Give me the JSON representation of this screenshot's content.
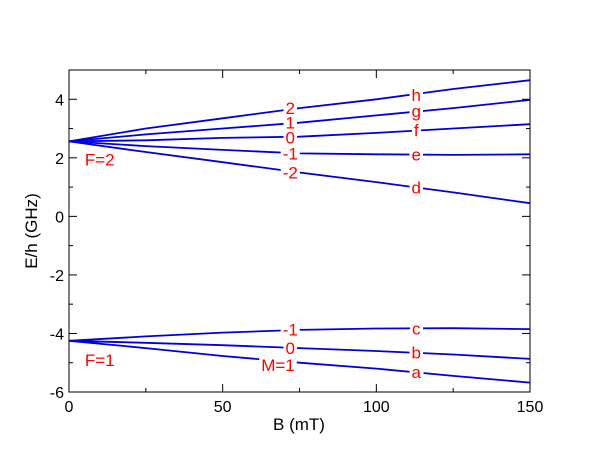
{
  "chart_data": {
    "type": "line",
    "title": "",
    "xlabel": "B (mT)",
    "ylabel": "E/h (GHz)",
    "xlim": [
      0,
      150
    ],
    "ylim": [
      -6,
      5
    ],
    "xticks": [
      0,
      50,
      100,
      150
    ],
    "yticks": [
      -6,
      -4,
      -2,
      0,
      2,
      4
    ],
    "grid": false,
    "line_color": "#0000dd",
    "annotation_color": "#ff0000",
    "series": [
      {
        "x": [
          0,
          25,
          50,
          75,
          100,
          125,
          150
        ],
        "values": [
          2.56,
          3.0,
          3.35,
          3.7,
          4.0,
          4.35,
          4.65
        ]
      },
      {
        "x": [
          0,
          25,
          50,
          75,
          100,
          125,
          150
        ],
        "values": [
          2.56,
          2.8,
          3.0,
          3.2,
          3.45,
          3.7,
          3.98
        ]
      },
      {
        "x": [
          0,
          25,
          50,
          75,
          100,
          125,
          150
        ],
        "values": [
          2.56,
          2.6,
          2.68,
          2.72,
          2.85,
          3.0,
          3.15
        ]
      },
      {
        "x": [
          0,
          25,
          50,
          75,
          100,
          125,
          150
        ],
        "values": [
          2.56,
          2.4,
          2.27,
          2.15,
          2.12,
          2.1,
          2.12
        ]
      },
      {
        "x": [
          0,
          25,
          50,
          75,
          100,
          125,
          150
        ],
        "values": [
          2.56,
          2.2,
          1.85,
          1.5,
          1.17,
          0.82,
          0.45
        ]
      },
      {
        "x": [
          0,
          25,
          50,
          75,
          100,
          125,
          150
        ],
        "values": [
          -4.25,
          -4.1,
          -3.97,
          -3.88,
          -3.83,
          -3.82,
          -3.85
        ]
      },
      {
        "x": [
          0,
          25,
          50,
          75,
          100,
          125,
          150
        ],
        "values": [
          -4.25,
          -4.32,
          -4.4,
          -4.5,
          -4.6,
          -4.72,
          -4.87
        ]
      },
      {
        "x": [
          0,
          25,
          50,
          75,
          100,
          125,
          150
        ],
        "values": [
          -4.25,
          -4.5,
          -4.77,
          -5.0,
          -5.2,
          -5.45,
          -5.68
        ]
      }
    ],
    "annotations": [
      {
        "text": "F=2",
        "x": 10,
        "y": 1.95
      },
      {
        "text": "F=1",
        "x": 10,
        "y": -4.9
      },
      {
        "text": "2",
        "x": 72,
        "y": 3.7
      },
      {
        "text": "1",
        "x": 72,
        "y": 3.2
      },
      {
        "text": "0",
        "x": 72,
        "y": 2.7
      },
      {
        "text": "-1",
        "x": 72,
        "y": 2.15
      },
      {
        "text": "-2",
        "x": 72,
        "y": 1.5
      },
      {
        "text": "-1",
        "x": 72,
        "y": -3.87
      },
      {
        "text": "0",
        "x": 72,
        "y": -4.5
      },
      {
        "text": "M=1",
        "x": 68,
        "y": -5.07
      },
      {
        "text": "h",
        "x": 113,
        "y": 4.15
      },
      {
        "text": "g",
        "x": 113,
        "y": 3.6
      },
      {
        "text": "f",
        "x": 113,
        "y": 2.95
      },
      {
        "text": "e",
        "x": 113,
        "y": 2.11
      },
      {
        "text": "d",
        "x": 113,
        "y": 0.98
      },
      {
        "text": "c",
        "x": 113,
        "y": -3.83
      },
      {
        "text": "b",
        "x": 113,
        "y": -4.65
      },
      {
        "text": "a",
        "x": 113,
        "y": -5.32
      }
    ]
  }
}
